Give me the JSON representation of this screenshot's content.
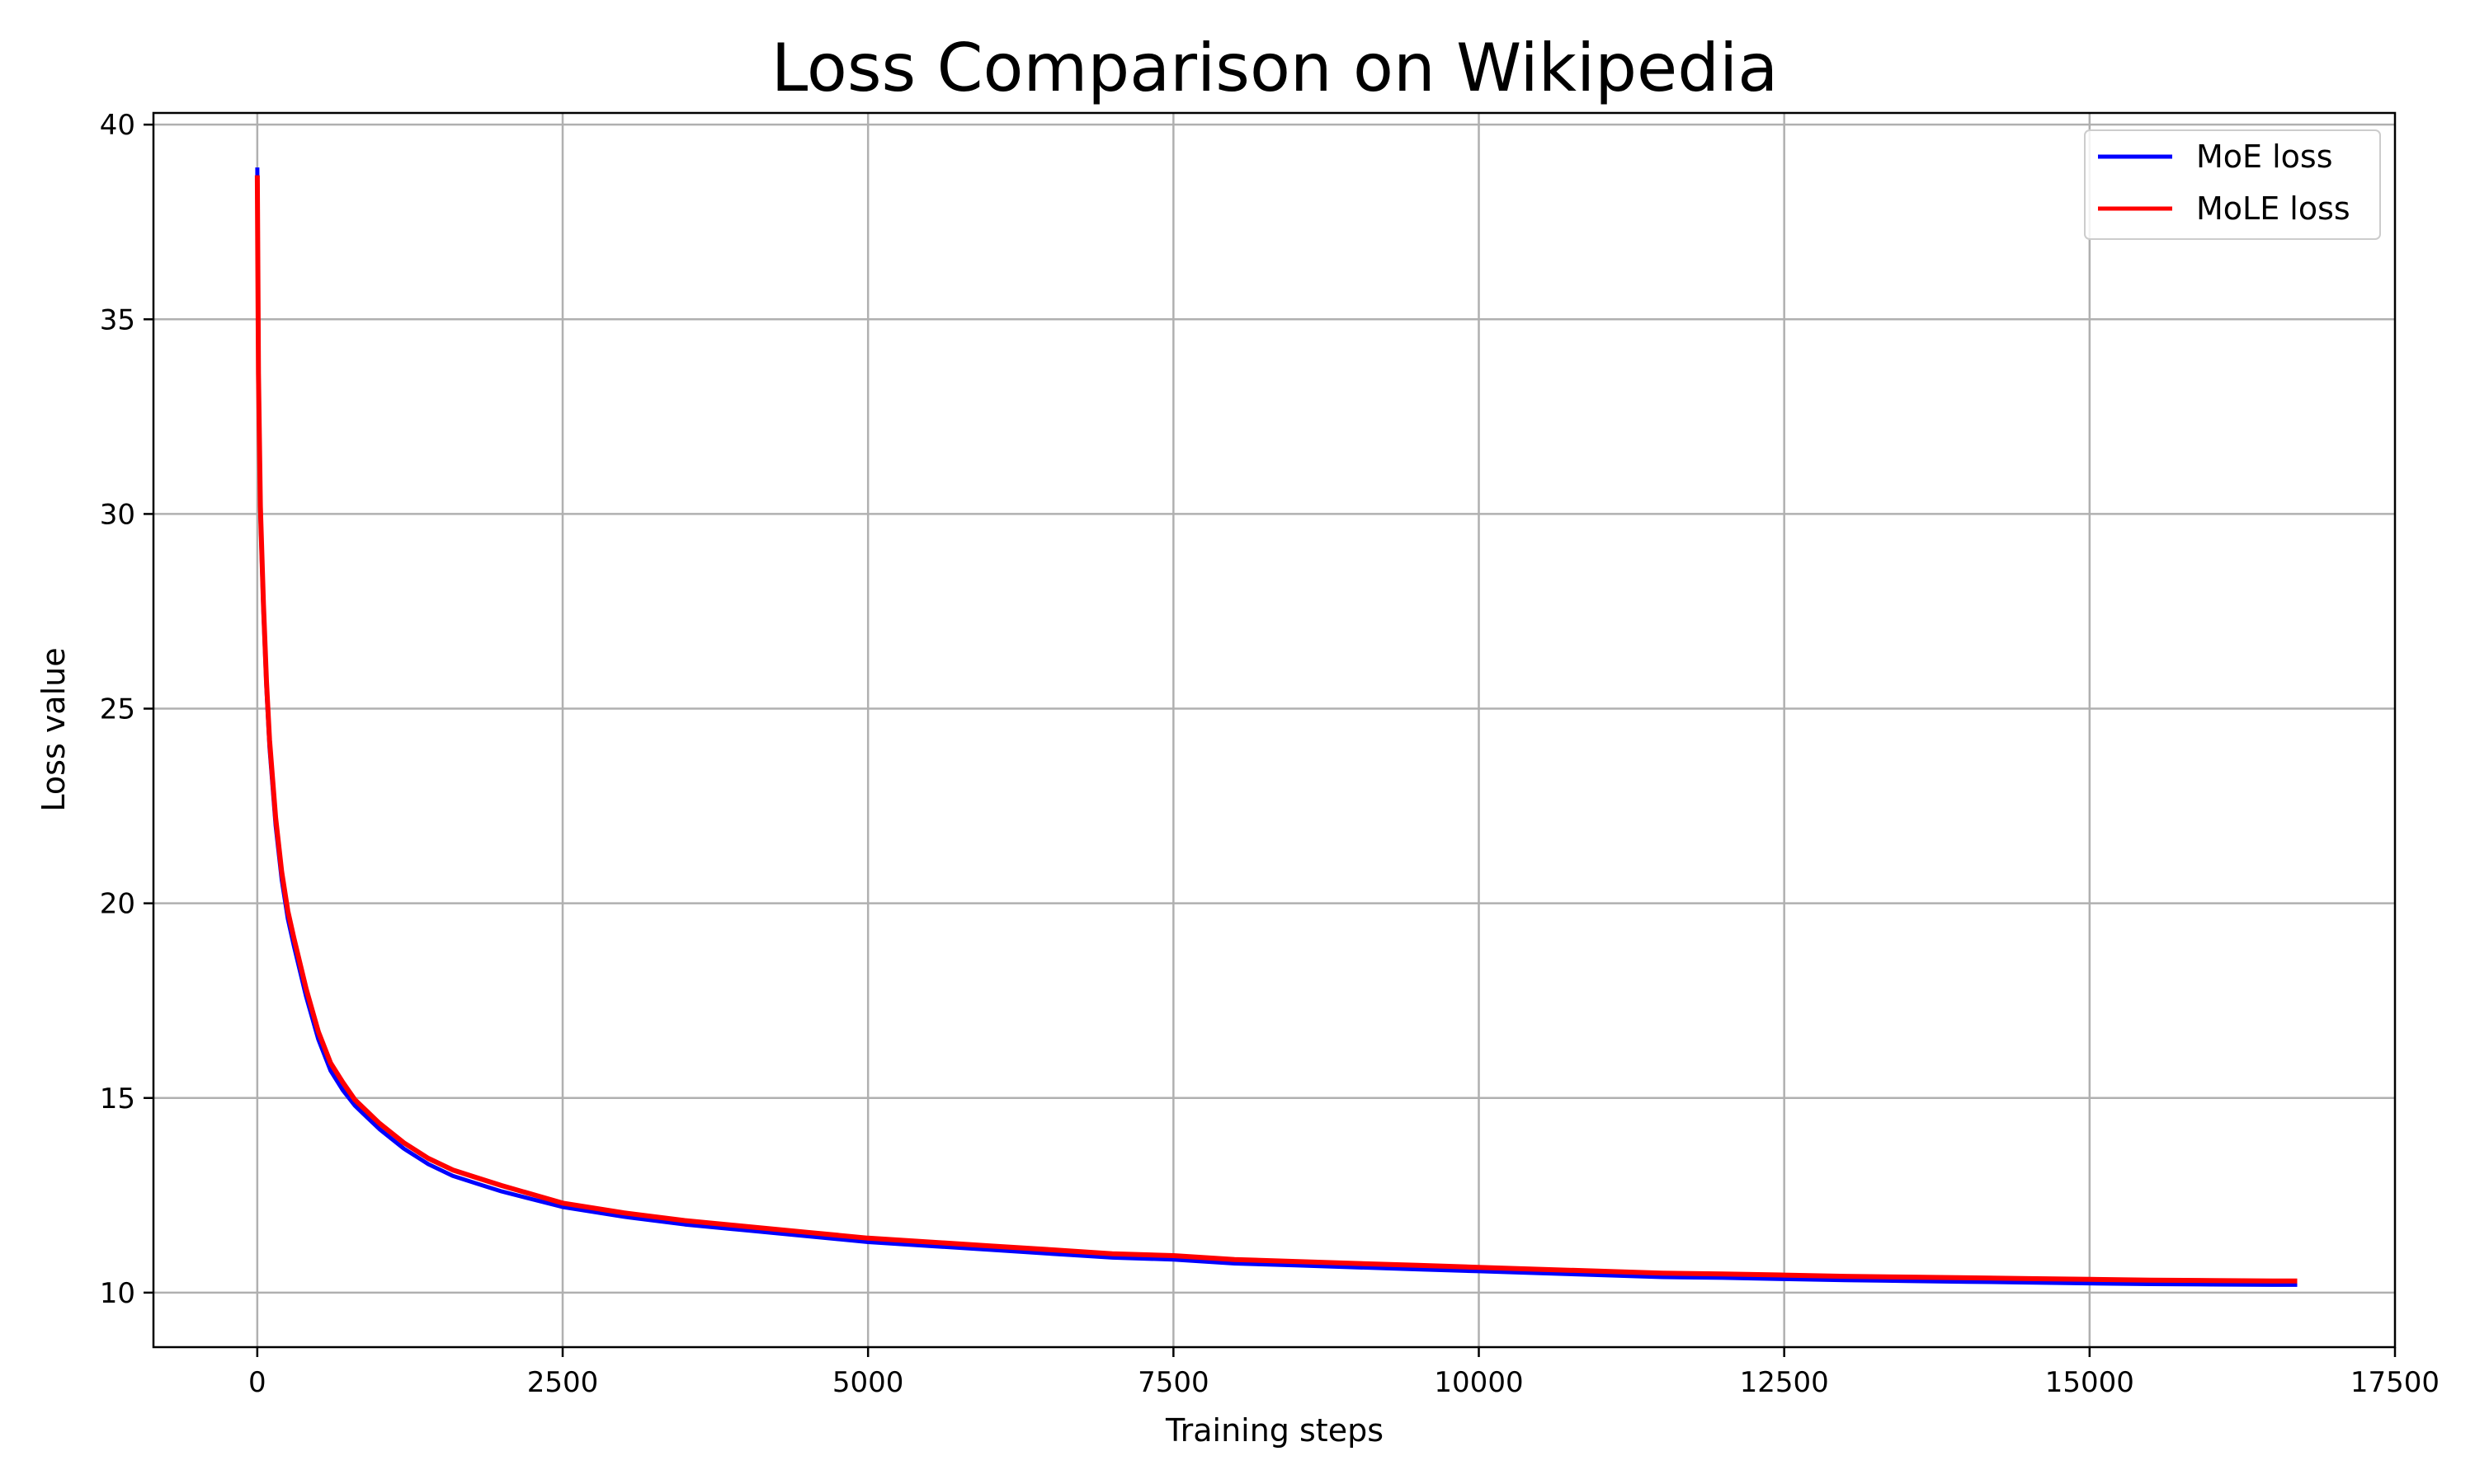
{
  "chart_data": {
    "type": "line",
    "title": "Loss Comparison on Wikipedia",
    "xlabel": "Training steps",
    "ylabel": "Loss value",
    "xlim": [
      -850,
      17500
    ],
    "ylim": [
      8.6,
      40.3
    ],
    "xticks": [
      0,
      2500,
      5000,
      7500,
      10000,
      12500,
      15000,
      17500
    ],
    "yticks": [
      10,
      15,
      20,
      25,
      30,
      35,
      40
    ],
    "grid": true,
    "legend": "top-right",
    "series": [
      {
        "name": "MoE loss",
        "color": "#0000ff",
        "x": [
          0,
          10,
          25,
          50,
          75,
          100,
          150,
          200,
          250,
          300,
          400,
          500,
          600,
          700,
          800,
          900,
          1000,
          1200,
          1400,
          1600,
          1800,
          2000,
          2500,
          3000,
          3500,
          4000,
          4500,
          5000,
          5500,
          6000,
          6500,
          7000,
          7500,
          8000,
          8500,
          9000,
          9500,
          10000,
          10500,
          11000,
          11500,
          12000,
          12500,
          13000,
          13500,
          14000,
          14500,
          15000,
          15500,
          16000,
          16500,
          16700
        ],
        "y": [
          38.9,
          33.5,
          30.0,
          27.5,
          25.5,
          24.0,
          22.0,
          20.6,
          19.6,
          18.9,
          17.6,
          16.5,
          15.7,
          15.2,
          14.8,
          14.5,
          14.2,
          13.7,
          13.3,
          13.0,
          12.8,
          12.6,
          12.2,
          11.95,
          11.75,
          11.6,
          11.45,
          11.3,
          11.2,
          11.1,
          11.0,
          10.9,
          10.85,
          10.75,
          10.7,
          10.65,
          10.6,
          10.55,
          10.5,
          10.45,
          10.4,
          10.38,
          10.35,
          10.32,
          10.3,
          10.28,
          10.26,
          10.24,
          10.22,
          10.21,
          10.2,
          10.2
        ]
      },
      {
        "name": "MoLE loss",
        "color": "#ff0000",
        "x": [
          0,
          10,
          25,
          50,
          75,
          100,
          150,
          200,
          250,
          300,
          400,
          500,
          600,
          700,
          800,
          900,
          1000,
          1200,
          1400,
          1600,
          1800,
          2000,
          2500,
          3000,
          3500,
          4000,
          4500,
          5000,
          5500,
          6000,
          6500,
          7000,
          7500,
          8000,
          8500,
          9000,
          9500,
          10000,
          10500,
          11000,
          11500,
          12000,
          12500,
          13000,
          13500,
          14000,
          14500,
          15000,
          15500,
          16000,
          16500,
          16700
        ],
        "y": [
          38.7,
          33.6,
          30.2,
          27.7,
          25.7,
          24.2,
          22.2,
          20.8,
          19.8,
          19.1,
          17.8,
          16.7,
          15.9,
          15.4,
          14.95,
          14.65,
          14.35,
          13.85,
          13.45,
          13.15,
          12.95,
          12.75,
          12.3,
          12.05,
          11.85,
          11.7,
          11.55,
          11.4,
          11.3,
          11.2,
          11.1,
          11.0,
          10.95,
          10.85,
          10.8,
          10.75,
          10.7,
          10.65,
          10.6,
          10.55,
          10.5,
          10.48,
          10.45,
          10.42,
          10.4,
          10.38,
          10.36,
          10.34,
          10.32,
          10.31,
          10.3,
          10.3
        ]
      }
    ]
  }
}
